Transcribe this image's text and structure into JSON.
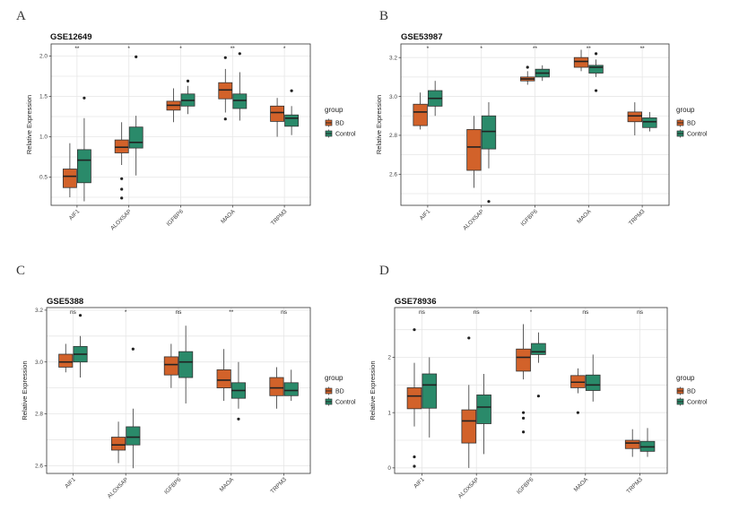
{
  "colors": {
    "BD": "#d2622a",
    "Control": "#2a8a6a",
    "grid": "#e6e6e6",
    "frame": "#333333"
  },
  "legend": {
    "title": "group",
    "items": [
      "BD",
      "Control"
    ]
  },
  "chart_data": [
    {
      "letter": "A",
      "title": "GSE12649",
      "type": "boxplot",
      "ylabel": "Relative Expression",
      "ylim": [
        0.15,
        2.15
      ],
      "yticks": [
        "0.5",
        "1.0",
        "1.5",
        "2.0"
      ],
      "categories": [
        "AIF1",
        "ALOX5AP",
        "IGFBP6",
        "MAOA",
        "TRPM3"
      ],
      "significance": [
        "**",
        "*",
        "*",
        "**",
        "*"
      ],
      "series": [
        {
          "name": "BD",
          "boxes": [
            {
              "min": 0.25,
              "q1": 0.37,
              "median": 0.51,
              "q3": 0.6,
              "max": 0.92,
              "outliers": []
            },
            {
              "min": 0.65,
              "q1": 0.8,
              "median": 0.87,
              "q3": 0.96,
              "max": 1.18,
              "outliers": [
                0.48,
                0.35,
                0.24
              ]
            },
            {
              "min": 1.18,
              "q1": 1.33,
              "median": 1.39,
              "q3": 1.44,
              "max": 1.6,
              "outliers": []
            },
            {
              "min": 1.3,
              "q1": 1.47,
              "median": 1.58,
              "q3": 1.67,
              "max": 1.84,
              "outliers": [
                1.98,
                1.22
              ]
            },
            {
              "min": 1.0,
              "q1": 1.19,
              "median": 1.3,
              "q3": 1.38,
              "max": 1.48,
              "outliers": []
            }
          ]
        },
        {
          "name": "Control",
          "boxes": [
            {
              "min": 0.2,
              "q1": 0.43,
              "median": 0.71,
              "q3": 0.84,
              "max": 1.23,
              "outliers": [
                1.48
              ]
            },
            {
              "min": 0.52,
              "q1": 0.86,
              "median": 0.93,
              "q3": 1.12,
              "max": 1.26,
              "outliers": [
                1.99
              ]
            },
            {
              "min": 1.28,
              "q1": 1.38,
              "median": 1.45,
              "q3": 1.53,
              "max": 1.63,
              "outliers": [
                1.69
              ]
            },
            {
              "min": 1.2,
              "q1": 1.35,
              "median": 1.45,
              "q3": 1.53,
              "max": 1.8,
              "outliers": [
                2.03
              ]
            },
            {
              "min": 1.02,
              "q1": 1.13,
              "median": 1.23,
              "q3": 1.27,
              "max": 1.38,
              "outliers": [
                1.57
              ]
            }
          ]
        }
      ]
    },
    {
      "letter": "B",
      "title": "GSE53987",
      "type": "boxplot",
      "ylabel": "Relative Expression",
      "ylim": [
        2.44,
        3.27
      ],
      "yticks": [
        "2.6",
        "2.8",
        "3.0",
        "3.2"
      ],
      "categories": [
        "AIF1",
        "ALOX5AP",
        "IGFBP6",
        "MAOA",
        "TRPM3"
      ],
      "significance": [
        "*",
        "*",
        "**",
        "**",
        "**"
      ],
      "series": [
        {
          "name": "BD",
          "boxes": [
            {
              "min": 2.83,
              "q1": 2.85,
              "median": 2.92,
              "q3": 2.96,
              "max": 3.02,
              "outliers": []
            },
            {
              "min": 2.53,
              "q1": 2.62,
              "median": 2.74,
              "q3": 2.83,
              "max": 2.9,
              "outliers": []
            },
            {
              "min": 3.06,
              "q1": 3.08,
              "median": 3.09,
              "q3": 3.1,
              "max": 3.13,
              "outliers": [
                3.15
              ]
            },
            {
              "min": 3.13,
              "q1": 3.15,
              "median": 3.18,
              "q3": 3.2,
              "max": 3.24,
              "outliers": []
            },
            {
              "min": 2.8,
              "q1": 2.87,
              "median": 2.9,
              "q3": 2.92,
              "max": 2.97,
              "outliers": []
            }
          ]
        },
        {
          "name": "Control",
          "boxes": [
            {
              "min": 2.9,
              "q1": 2.95,
              "median": 2.99,
              "q3": 3.03,
              "max": 3.08,
              "outliers": []
            },
            {
              "min": 2.63,
              "q1": 2.73,
              "median": 2.82,
              "q3": 2.9,
              "max": 2.97,
              "outliers": [
                2.46
              ]
            },
            {
              "min": 3.08,
              "q1": 3.1,
              "median": 3.12,
              "q3": 3.14,
              "max": 3.16,
              "outliers": []
            },
            {
              "min": 3.1,
              "q1": 3.12,
              "median": 3.15,
              "q3": 3.16,
              "max": 3.19,
              "outliers": [
                3.22,
                3.03
              ]
            },
            {
              "min": 2.82,
              "q1": 2.84,
              "median": 2.87,
              "q3": 2.89,
              "max": 2.92,
              "outliers": []
            }
          ]
        }
      ]
    },
    {
      "letter": "C",
      "title": "GSE5388",
      "type": "boxplot",
      "ylabel": "Relative Expression",
      "ylim": [
        2.57,
        3.21
      ],
      "yticks": [
        "2.6",
        "2.8",
        "3.0",
        "3.2"
      ],
      "categories": [
        "AIF1",
        "ALOX5AP",
        "IGFBP6",
        "MAOA",
        "TRPM3"
      ],
      "significance": [
        "ns",
        "*",
        "ns",
        "**",
        "ns"
      ],
      "series": [
        {
          "name": "BD",
          "boxes": [
            {
              "min": 2.96,
              "q1": 2.98,
              "median": 3.0,
              "q3": 3.03,
              "max": 3.07,
              "outliers": []
            },
            {
              "min": 2.61,
              "q1": 2.66,
              "median": 2.68,
              "q3": 2.71,
              "max": 2.77,
              "outliers": []
            },
            {
              "min": 2.9,
              "q1": 2.95,
              "median": 2.99,
              "q3": 3.02,
              "max": 3.07,
              "outliers": []
            },
            {
              "min": 2.85,
              "q1": 2.9,
              "median": 2.93,
              "q3": 2.97,
              "max": 3.05,
              "outliers": []
            },
            {
              "min": 2.82,
              "q1": 2.87,
              "median": 2.9,
              "q3": 2.94,
              "max": 2.98,
              "outliers": []
            }
          ]
        },
        {
          "name": "Control",
          "boxes": [
            {
              "min": 2.94,
              "q1": 3.0,
              "median": 3.03,
              "q3": 3.06,
              "max": 3.1,
              "outliers": [
                3.18
              ]
            },
            {
              "min": 2.59,
              "q1": 2.68,
              "median": 2.71,
              "q3": 2.75,
              "max": 2.82,
              "outliers": [
                3.05
              ]
            },
            {
              "min": 2.84,
              "q1": 2.94,
              "median": 3.0,
              "q3": 3.04,
              "max": 3.14,
              "outliers": []
            },
            {
              "min": 2.82,
              "q1": 2.86,
              "median": 2.89,
              "q3": 2.92,
              "max": 3.0,
              "outliers": [
                2.78
              ]
            },
            {
              "min": 2.85,
              "q1": 2.87,
              "median": 2.89,
              "q3": 2.92,
              "max": 2.97,
              "outliers": []
            }
          ]
        }
      ]
    },
    {
      "letter": "D",
      "title": "GSE78936",
      "type": "boxplot",
      "ylabel": "Relative Expression",
      "ylim": [
        -0.1,
        2.9
      ],
      "yticks": [
        "0",
        "1",
        "2"
      ],
      "categories": [
        "AIF1",
        "ALOX5AP",
        "IGFBP6",
        "MAOA",
        "TRPM3"
      ],
      "significance": [
        "ns",
        "ns",
        "*",
        "ns",
        "ns"
      ],
      "series": [
        {
          "name": "BD",
          "boxes": [
            {
              "min": 0.75,
              "q1": 1.07,
              "median": 1.3,
              "q3": 1.45,
              "max": 1.9,
              "outliers": [
                2.5,
                0.2,
                0.03
              ]
            },
            {
              "min": 0.0,
              "q1": 0.45,
              "median": 0.85,
              "q3": 1.05,
              "max": 1.5,
              "outliers": [
                2.35
              ]
            },
            {
              "min": 1.6,
              "q1": 1.75,
              "median": 2.0,
              "q3": 2.15,
              "max": 2.6,
              "outliers": [
                1.0,
                0.9,
                0.65
              ]
            },
            {
              "min": 1.35,
              "q1": 1.45,
              "median": 1.55,
              "q3": 1.67,
              "max": 1.8,
              "outliers": [
                1.0
              ]
            },
            {
              "min": 0.2,
              "q1": 0.35,
              "median": 0.45,
              "q3": 0.5,
              "max": 0.7,
              "outliers": []
            }
          ]
        },
        {
          "name": "Control",
          "boxes": [
            {
              "min": 0.55,
              "q1": 1.08,
              "median": 1.5,
              "q3": 1.7,
              "max": 2.0,
              "outliers": []
            },
            {
              "min": 0.25,
              "q1": 0.8,
              "median": 1.1,
              "q3": 1.32,
              "max": 1.7,
              "outliers": []
            },
            {
              "min": 1.9,
              "q1": 2.05,
              "median": 2.1,
              "q3": 2.25,
              "max": 2.45,
              "outliers": [
                1.3
              ]
            },
            {
              "min": 1.2,
              "q1": 1.4,
              "median": 1.5,
              "q3": 1.68,
              "max": 2.05,
              "outliers": []
            },
            {
              "min": 0.2,
              "q1": 0.3,
              "median": 0.38,
              "q3": 0.48,
              "max": 0.72,
              "outliers": []
            }
          ]
        }
      ]
    }
  ]
}
